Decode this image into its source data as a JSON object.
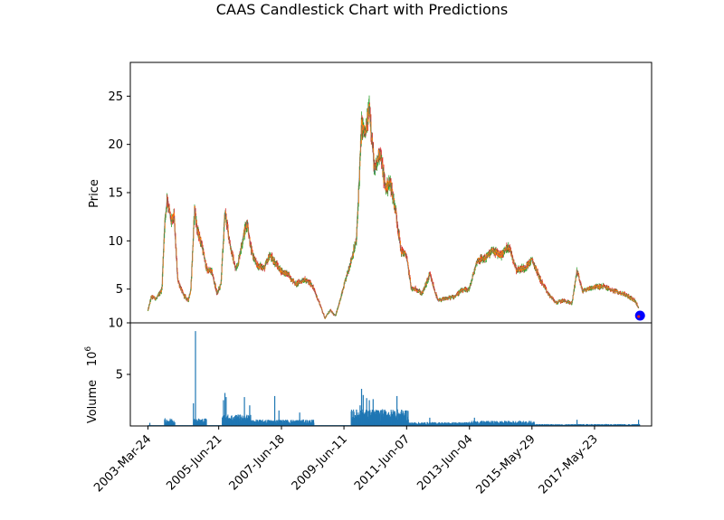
{
  "chart_data": {
    "type": "candlestick",
    "title": "CAAS Candlestick Chart with Predictions",
    "price_panel": {
      "ylabel": "Price",
      "ylim": [
        1.5,
        28.5
      ],
      "yticks": [
        5,
        10,
        15,
        20,
        25
      ],
      "colors": {
        "up": "#2ca02c",
        "down": "#d62728",
        "body": "#ff7f0e",
        "wick": "#1f77b4"
      },
      "close_series": [
        [
          "2003-03-24",
          2.8
        ],
        [
          "2003-05-01",
          4.2
        ],
        [
          "2003-07-01",
          4.0
        ],
        [
          "2003-09-01",
          5.0
        ],
        [
          "2003-10-01",
          11.5
        ],
        [
          "2003-11-01",
          14.5
        ],
        [
          "2003-12-15",
          12.0
        ],
        [
          "2004-01-20",
          12.5
        ],
        [
          "2004-03-01",
          6.0
        ],
        [
          "2004-05-01",
          4.5
        ],
        [
          "2004-07-01",
          3.8
        ],
        [
          "2004-08-01",
          5.0
        ],
        [
          "2004-09-15",
          13.5
        ],
        [
          "2004-10-15",
          11.0
        ],
        [
          "2004-12-01",
          9.8
        ],
        [
          "2005-02-01",
          7.0
        ],
        [
          "2005-04-01",
          6.8
        ],
        [
          "2005-06-01",
          4.5
        ],
        [
          "2005-07-15",
          5.5
        ],
        [
          "2005-09-01",
          13.0
        ],
        [
          "2005-11-01",
          9.5
        ],
        [
          "2006-01-01",
          7.0
        ],
        [
          "2006-02-01",
          7.8
        ],
        [
          "2006-04-01",
          10.5
        ],
        [
          "2006-05-15",
          12.0
        ],
        [
          "2006-07-01",
          9.0
        ],
        [
          "2006-09-01",
          7.5
        ],
        [
          "2006-12-01",
          7.2
        ],
        [
          "2007-02-01",
          8.5
        ],
        [
          "2007-04-01",
          7.8
        ],
        [
          "2007-06-01",
          7.0
        ],
        [
          "2007-09-01",
          6.5
        ],
        [
          "2007-12-01",
          5.5
        ],
        [
          "2008-03-01",
          6.0
        ],
        [
          "2008-06-01",
          5.5
        ],
        [
          "2008-09-01",
          3.5
        ],
        [
          "2008-11-01",
          2.0
        ],
        [
          "2009-01-01",
          2.8
        ],
        [
          "2009-03-01",
          2.2
        ],
        [
          "2009-05-01",
          4.0
        ],
        [
          "2009-07-01",
          6.0
        ],
        [
          "2009-09-01",
          8.0
        ],
        [
          "2009-11-01",
          10.0
        ],
        [
          "2010-01-01",
          22.0
        ],
        [
          "2010-02-15",
          21.0
        ],
        [
          "2010-04-01",
          24.0
        ],
        [
          "2010-06-01",
          17.0
        ],
        [
          "2010-08-01",
          19.5
        ],
        [
          "2010-10-01",
          15.5
        ],
        [
          "2010-12-01",
          16.0
        ],
        [
          "2011-02-01",
          13.0
        ],
        [
          "2011-04-01",
          9.0
        ],
        [
          "2011-06-01",
          8.5
        ],
        [
          "2011-08-01",
          5.0
        ],
        [
          "2011-10-01",
          5.0
        ],
        [
          "2011-12-01",
          4.5
        ],
        [
          "2012-03-01",
          6.5
        ],
        [
          "2012-06-01",
          3.8
        ],
        [
          "2012-09-01",
          4.0
        ],
        [
          "2012-12-01",
          4.2
        ],
        [
          "2013-03-01",
          4.8
        ],
        [
          "2013-06-01",
          5.0
        ],
        [
          "2013-09-01",
          8.0
        ],
        [
          "2013-12-01",
          8.2
        ],
        [
          "2014-03-01",
          9.0
        ],
        [
          "2014-06-01",
          8.5
        ],
        [
          "2014-09-01",
          9.5
        ],
        [
          "2014-12-01",
          7.0
        ],
        [
          "2015-03-01",
          7.2
        ],
        [
          "2015-06-01",
          8.0
        ],
        [
          "2015-09-01",
          6.0
        ],
        [
          "2015-12-01",
          4.5
        ],
        [
          "2016-03-01",
          3.6
        ],
        [
          "2016-06-01",
          3.8
        ],
        [
          "2016-09-01",
          3.5
        ],
        [
          "2016-11-01",
          7.0
        ],
        [
          "2017-01-01",
          4.8
        ],
        [
          "2017-05-01",
          5.2
        ],
        [
          "2017-09-01",
          5.3
        ],
        [
          "2018-01-01",
          4.8
        ],
        [
          "2018-05-01",
          4.5
        ],
        [
          "2018-09-01",
          3.8
        ],
        [
          "2018-10-15",
          3.0
        ]
      ],
      "predictions": [
        {
          "date": "2018-11-01",
          "price": 2.25,
          "color": "#0000ff",
          "label": ""
        }
      ]
    },
    "volume_panel": {
      "ylabel": "Volume",
      "ylabel_multiplier": "10^6",
      "ylim": [
        0,
        10
      ],
      "yticks": [
        5,
        10
      ],
      "bar_color": "#1f77b4",
      "spikes": [
        [
          "2003-04-15",
          0.3
        ],
        [
          "2003-11-01",
          0.5
        ],
        [
          "2004-09-01",
          2.2
        ],
        [
          "2004-09-25",
          9.2
        ],
        [
          "2005-08-15",
          2.5
        ],
        [
          "2005-09-01",
          3.2
        ],
        [
          "2005-09-15",
          2.8
        ],
        [
          "2006-04-15",
          2.8
        ],
        [
          "2006-06-15",
          2.0
        ],
        [
          "2007-04-01",
          2.9
        ],
        [
          "2007-05-20",
          1.5
        ],
        [
          "2008-01-15",
          1.3
        ],
        [
          "2009-12-15",
          2.0
        ],
        [
          "2010-01-01",
          3.6
        ],
        [
          "2010-01-20",
          3.0
        ],
        [
          "2010-03-01",
          2.7
        ],
        [
          "2010-04-01",
          2.5
        ],
        [
          "2010-05-15",
          2.6
        ],
        [
          "2011-02-15",
          2.9
        ],
        [
          "2012-03-01",
          0.8
        ],
        [
          "2013-08-01",
          0.8
        ],
        [
          "2016-11-01",
          0.6
        ],
        [
          "2018-10-15",
          0.6
        ]
      ],
      "clusters": [
        [
          "2003-10-01",
          "2004-01-31",
          0.6
        ],
        [
          "2004-09-01",
          "2005-01-31",
          0.6
        ],
        [
          "2005-08-01",
          "2006-06-30",
          0.9
        ],
        [
          "2006-01-01",
          "2008-06-30",
          0.5
        ],
        [
          "2009-09-01",
          "2011-06-30",
          1.3
        ],
        [
          "2011-01-01",
          "2013-06-30",
          0.3
        ],
        [
          "2013-06-01",
          "2015-06-30",
          0.4
        ],
        [
          "2015-06-01",
          "2018-10-31",
          0.15
        ]
      ]
    },
    "x_axis": {
      "type": "date",
      "range": [
        "2002-09-01",
        "2019-03-15"
      ],
      "tick_labels": [
        "2003-Mar-24",
        "2005-Jun-21",
        "2007-Jun-18",
        "2009-Jun-11",
        "2011-Jun-07",
        "2013-Jun-04",
        "2015-May-29",
        "2017-May-23"
      ]
    }
  }
}
